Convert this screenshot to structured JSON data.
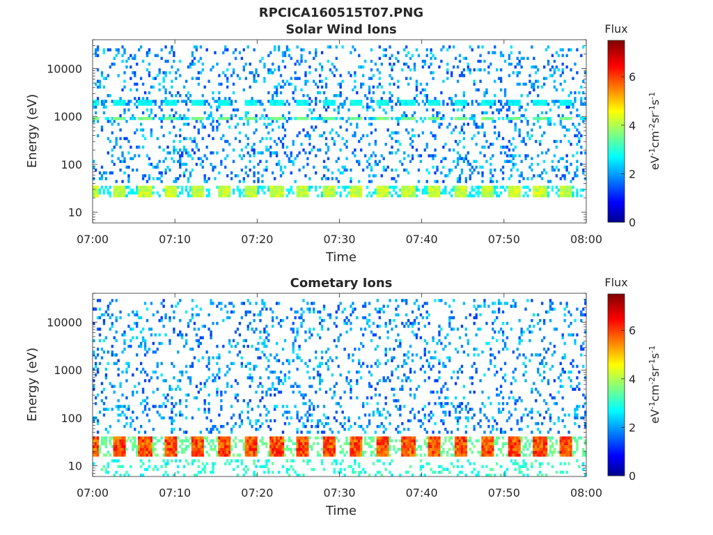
{
  "figure": {
    "title": "RPCICA160515T07.PNG"
  },
  "colormap": {
    "name": "jet",
    "stops": [
      "#00008f",
      "#0000ff",
      "#00ffff",
      "#ffff00",
      "#ff0000",
      "#800000"
    ]
  },
  "chart_data": [
    {
      "type": "heatmap",
      "title": "Solar Wind Ions",
      "xlabel": "Time",
      "ylabel": "Energy (eV)",
      "x_ticks": [
        "07:00",
        "07:10",
        "07:20",
        "07:30",
        "07:40",
        "07:50",
        "08:00"
      ],
      "xlim": [
        "07:00",
        "08:00"
      ],
      "y_scale": "log",
      "y_ticks": [
        10,
        100,
        1000,
        10000
      ],
      "ylim": [
        6,
        40000
      ],
      "colorbar": {
        "label": "Flux",
        "unit": "eV^-1cm^-2sr^-1s^-1",
        "ticks": [
          0,
          2,
          4,
          6
        ],
        "range": [
          0,
          7.5
        ]
      },
      "features": [
        {
          "description": "dense low-energy band",
          "energy_range_eV": [
            20,
            35
          ],
          "flux_range": [
            3,
            4.5
          ],
          "repeat_period_min": 3.2
        },
        {
          "description": "proton beam spots",
          "energy_range_eV": [
            800,
            1000
          ],
          "flux_range": [
            2.8,
            3.8
          ],
          "repeat_period_min": 3.2
        },
        {
          "description": "alpha beam spots",
          "energy_range_eV": [
            1700,
            2200
          ],
          "flux_range": [
            2.0,
            3.0
          ],
          "repeat_period_min": 3.2
        },
        {
          "description": "sparse background counts",
          "energy_range_eV": [
            40,
            30000
          ],
          "flux_range": [
            1.2,
            2.6
          ]
        }
      ]
    },
    {
      "type": "heatmap",
      "title": "Cometary Ions",
      "xlabel": "Time",
      "ylabel": "Energy (eV)",
      "x_ticks": [
        "07:00",
        "07:10",
        "07:20",
        "07:30",
        "07:40",
        "07:50",
        "08:00"
      ],
      "xlim": [
        "07:00",
        "08:00"
      ],
      "y_scale": "log",
      "y_ticks": [
        10,
        100,
        1000,
        10000
      ],
      "ylim": [
        6,
        40000
      ],
      "colorbar": {
        "label": "Flux",
        "unit": "eV^-1cm^-2sr^-1s^-1",
        "ticks": [
          0,
          2,
          4,
          6
        ],
        "range": [
          0,
          7.5
        ]
      },
      "features": [
        {
          "description": "intense cometary ion band",
          "energy_range_eV": [
            15,
            40
          ],
          "flux_range": [
            4,
            6.5
          ],
          "repeat_period_min": 3.2
        },
        {
          "description": "low-energy tail",
          "energy_range_eV": [
            6,
            14
          ],
          "flux_range": [
            2.5,
            3.5
          ]
        },
        {
          "description": "sparse background counts",
          "energy_range_eV": [
            50,
            30000
          ],
          "flux_range": [
            1.2,
            2.6
          ]
        }
      ]
    }
  ]
}
